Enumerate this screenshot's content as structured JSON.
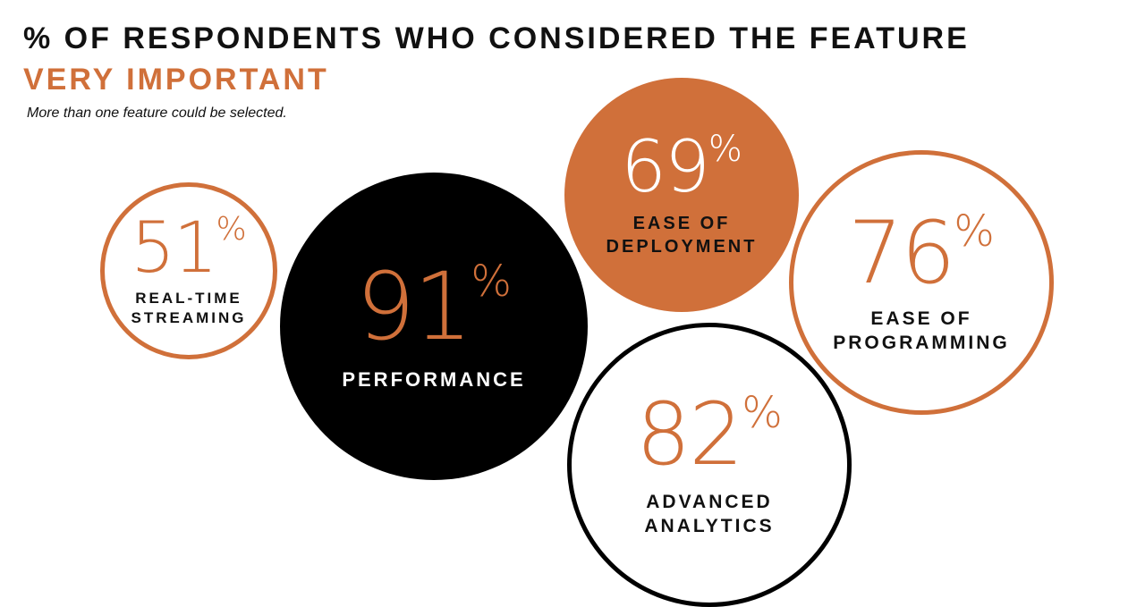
{
  "header": {
    "title_line1": "% OF RESPONDENTS WHO CONSIDERED THE FEATURE",
    "title_line2": "VERY IMPORTANT",
    "note": "More than one feature could be selected."
  },
  "colors": {
    "accent": "#d0703a",
    "black": "#000000",
    "white": "#ffffff"
  },
  "chart_data": {
    "type": "bubble",
    "unit": "%",
    "points": [
      {
        "value": 51,
        "display": "51",
        "label_lines": [
          "REAL-TIME",
          "STREAMING"
        ],
        "style": "outline-orange"
      },
      {
        "value": 91,
        "display": "91",
        "label_lines": [
          "PERFORMANCE"
        ],
        "style": "filled-black"
      },
      {
        "value": 69,
        "display": "69",
        "label_lines": [
          "EASE OF",
          "DEPLOYMENT"
        ],
        "style": "filled-orange"
      },
      {
        "value": 76,
        "display": "76",
        "label_lines": [
          "EASE OF",
          "PROGRAMMING"
        ],
        "style": "outline-orange"
      },
      {
        "value": 82,
        "display": "82",
        "label_lines": [
          "ADVANCED",
          "ANALYTICS"
        ],
        "style": "outline-black"
      }
    ]
  }
}
